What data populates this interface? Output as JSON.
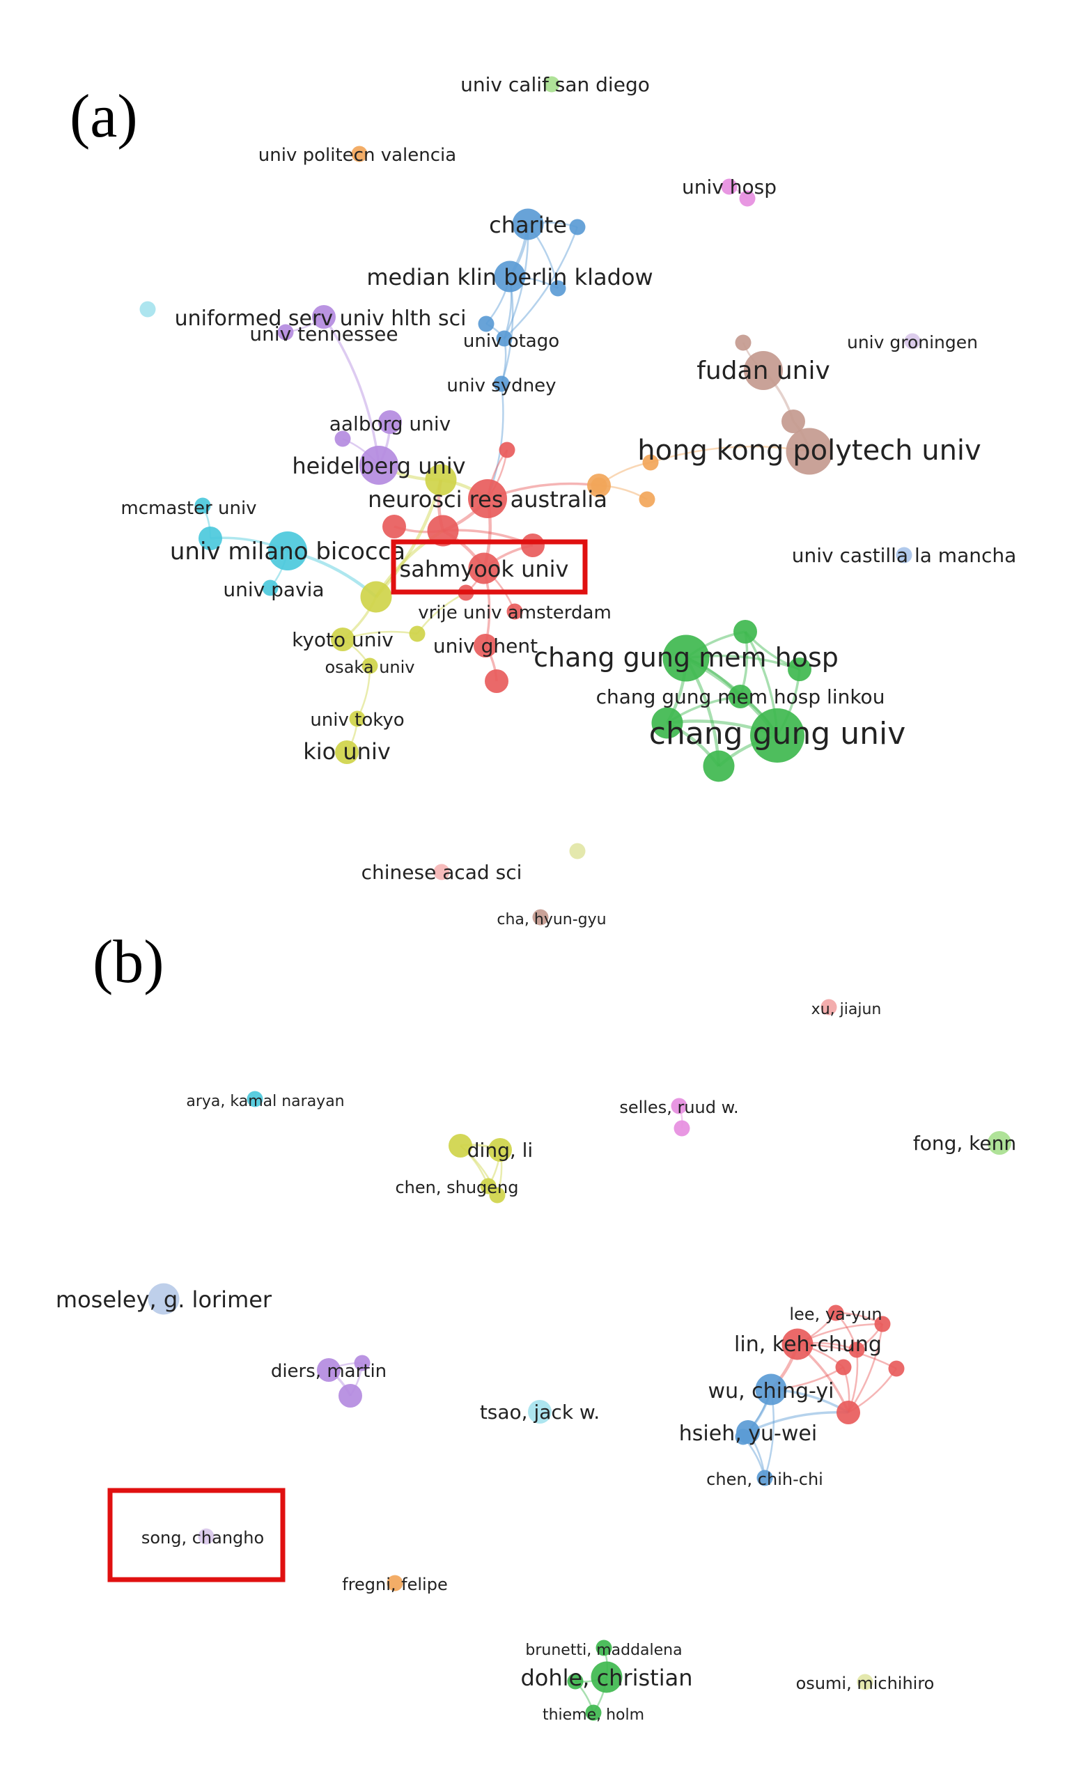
{
  "panels": [
    {
      "label": "(a)",
      "nodes": [
        {
          "id": "a_ucsd",
          "label": "univ calif san diego",
          "color": "#a8e08f",
          "weight": 1
        },
        {
          "id": "a_upv",
          "label": "univ politecn valencia",
          "color": "#f2a65a",
          "weight": 1
        },
        {
          "id": "a_hosp",
          "label": "univ hosp",
          "color": "#e68ee0",
          "weight": 1
        },
        {
          "id": "a_hosp2",
          "label": "",
          "color": "#e68ee0",
          "weight": 1
        },
        {
          "id": "a_charite",
          "label": "charite",
          "color": "#5b9bd5",
          "weight": 3
        },
        {
          "id": "a_b1",
          "label": "",
          "color": "#5b9bd5",
          "weight": 1
        },
        {
          "id": "a_median",
          "label": "median klin berlin kladow",
          "color": "#5b9bd5",
          "weight": 3
        },
        {
          "id": "a_b2",
          "label": "",
          "color": "#5b9bd5",
          "weight": 1
        },
        {
          "id": "a_b3",
          "label": "",
          "color": "#5b9bd5",
          "weight": 1
        },
        {
          "id": "a_otago",
          "label": "univ otago",
          "color": "#5b9bd5",
          "weight": 1
        },
        {
          "id": "a_sydney",
          "label": "univ sydney",
          "color": "#5b9bd5",
          "weight": 1
        },
        {
          "id": "a_lone",
          "label": "",
          "color": "#a6e3ee",
          "weight": 1
        },
        {
          "id": "a_usuhs",
          "label": "uniformed serv univ hlth sci",
          "color": "#b48be0",
          "weight": 2
        },
        {
          "id": "a_tenn",
          "label": "univ tennessee",
          "color": "#b48be0",
          "weight": 1
        },
        {
          "id": "a_aalborg",
          "label": "aalborg univ",
          "color": "#b48be0",
          "weight": 2
        },
        {
          "id": "a_p1",
          "label": "",
          "color": "#b48be0",
          "weight": 1
        },
        {
          "id": "a_heid",
          "label": "heidelberg univ",
          "color": "#b48be0",
          "weight": 4
        },
        {
          "id": "a_groningen",
          "label": "univ groningen",
          "color": "#d9c8ea",
          "weight": 1
        },
        {
          "id": "a_fudan",
          "label": "fudan univ",
          "color": "#c49a8f",
          "weight": 4
        },
        {
          "id": "a_br1",
          "label": "",
          "color": "#c49a8f",
          "weight": 1
        },
        {
          "id": "a_br2",
          "label": "",
          "color": "#c49a8f",
          "weight": 2
        },
        {
          "id": "a_hkpu",
          "label": "hong kong polytech univ",
          "color": "#c49a8f",
          "weight": 5
        },
        {
          "id": "a_o1",
          "label": "",
          "color": "#f2a65a",
          "weight": 2
        },
        {
          "id": "a_o2",
          "label": "",
          "color": "#f2a65a",
          "weight": 1
        },
        {
          "id": "a_o3",
          "label": "",
          "color": "#f2a65a",
          "weight": 1
        },
        {
          "id": "a_o4",
          "label": "",
          "color": "#f2a65a",
          "weight": 1
        },
        {
          "id": "a_mcmaster",
          "label": "mcmaster univ",
          "color": "#4cc9dc",
          "weight": 1
        },
        {
          "id": "a_c1",
          "label": "",
          "color": "#4cc9dc",
          "weight": 2
        },
        {
          "id": "a_milano",
          "label": "univ milano bicocca",
          "color": "#4cc9dc",
          "weight": 4
        },
        {
          "id": "a_pavia",
          "label": "univ pavia",
          "color": "#4cc9dc",
          "weight": 1
        },
        {
          "id": "a_nra",
          "label": "neurosci res australia",
          "color": "#e85c5c",
          "weight": 4
        },
        {
          "id": "a_r1",
          "label": "",
          "color": "#e85c5c",
          "weight": 1
        },
        {
          "id": "a_r2",
          "label": "",
          "color": "#e85c5c",
          "weight": 3
        },
        {
          "id": "a_r3",
          "label": "",
          "color": "#e85c5c",
          "weight": 2
        },
        {
          "id": "a_r4",
          "label": "",
          "color": "#e85c5c",
          "weight": 2
        },
        {
          "id": "a_sahm",
          "label": "sahmyook univ",
          "color": "#e85c5c",
          "weight": 3
        },
        {
          "id": "a_r5",
          "label": "",
          "color": "#e85c5c",
          "weight": 1
        },
        {
          "id": "a_vua",
          "label": "vrije univ amsterdam",
          "color": "#e85c5c",
          "weight": 1
        },
        {
          "id": "a_ghent",
          "label": "univ ghent",
          "color": "#e85c5c",
          "weight": 2
        },
        {
          "id": "a_r6",
          "label": "",
          "color": "#e85c5c",
          "weight": 2
        },
        {
          "id": "a_y1",
          "label": "",
          "color": "#cfd44a",
          "weight": 3
        },
        {
          "id": "a_y2",
          "label": "",
          "color": "#cfd44a",
          "weight": 3
        },
        {
          "id": "a_kyoto",
          "label": "kyoto univ",
          "color": "#cfd44a",
          "weight": 2
        },
        {
          "id": "a_y3",
          "label": "",
          "color": "#cfd44a",
          "weight": 1
        },
        {
          "id": "a_osaka",
          "label": "osaka univ",
          "color": "#cfd44a",
          "weight": 1
        },
        {
          "id": "a_tokyo",
          "label": "univ tokyo",
          "color": "#cfd44a",
          "weight": 1
        },
        {
          "id": "a_kio",
          "label": "kio univ",
          "color": "#cfd44a",
          "weight": 2
        },
        {
          "id": "a_castilla",
          "label": "univ castilla la mancha",
          "color": "#a9c4ea",
          "weight": 1
        },
        {
          "id": "a_cgmh",
          "label": "chang gung mem hosp",
          "color": "#3fb84f",
          "weight": 5
        },
        {
          "id": "a_g1",
          "label": "",
          "color": "#3fb84f",
          "weight": 2
        },
        {
          "id": "a_g2",
          "label": "",
          "color": "#3fb84f",
          "weight": 2
        },
        {
          "id": "a_linkou",
          "label": "chang gung mem hosp linkou",
          "color": "#3fb84f",
          "weight": 2
        },
        {
          "id": "a_g3",
          "label": "",
          "color": "#3fb84f",
          "weight": 3
        },
        {
          "id": "a_cgu",
          "label": "chang gung univ",
          "color": "#3fb84f",
          "weight": 6
        },
        {
          "id": "a_g4",
          "label": "",
          "color": "#3fb84f",
          "weight": 3
        },
        {
          "id": "a_lone2",
          "label": "",
          "color": "#e2e6a6",
          "weight": 1
        },
        {
          "id": "a_cas",
          "label": "chinese acad sci",
          "color": "#f5b5b5",
          "weight": 1
        },
        {
          "id": "a_cha",
          "label": "cha, hyun-gyu",
          "color": "#c49a8f",
          "weight": 1
        }
      ],
      "links": [
        [
          "a_charite",
          "a_median"
        ],
        [
          "a_charite",
          "a_b1"
        ],
        [
          "a_charite",
          "a_b2"
        ],
        [
          "a_median",
          "a_b2"
        ],
        [
          "a_median",
          "a_b3"
        ],
        [
          "a_median",
          "a_otago"
        ],
        [
          "a_charite",
          "a_otago"
        ],
        [
          "a_b1",
          "a_otago"
        ],
        [
          "a_b3",
          "a_otago"
        ],
        [
          "a_median",
          "a_sydney"
        ],
        [
          "a_otago",
          "a_sydney"
        ],
        [
          "a_sydney",
          "a_nra"
        ],
        [
          "a_hosp",
          "a_hosp2"
        ],
        [
          "a_usuhs",
          "a_tenn"
        ],
        [
          "a_usuhs",
          "a_heid"
        ],
        [
          "a_aalborg",
          "a_heid"
        ],
        [
          "a_p1",
          "a_heid"
        ],
        [
          "a_fudan",
          "a_br1"
        ],
        [
          "a_fudan",
          "a_br2"
        ],
        [
          "a_br2",
          "a_hkpu"
        ],
        [
          "a_mcmaster",
          "a_c1"
        ],
        [
          "a_c1",
          "a_milano"
        ],
        [
          "a_milano",
          "a_pavia"
        ],
        [
          "a_milano",
          "a_y2"
        ],
        [
          "a_nra",
          "a_r1"
        ],
        [
          "a_nra",
          "a_r2"
        ],
        [
          "a_nra",
          "a_sahm"
        ],
        [
          "a_r2",
          "a_sahm"
        ],
        [
          "a_r2",
          "a_r3"
        ],
        [
          "a_r2",
          "a_r4"
        ],
        [
          "a_sahm",
          "a_r4"
        ],
        [
          "a_sahm",
          "a_r5"
        ],
        [
          "a_sahm",
          "a_vua"
        ],
        [
          "a_sahm",
          "a_ghent"
        ],
        [
          "a_ghent",
          "a_r6"
        ],
        [
          "a_r2",
          "a_y1"
        ],
        [
          "a_y1",
          "a_nra"
        ],
        [
          "a_y1",
          "a_heid"
        ],
        [
          "a_y1",
          "a_y2"
        ],
        [
          "a_y2",
          "a_kyoto"
        ],
        [
          "a_y2",
          "a_r2"
        ],
        [
          "a_kyoto",
          "a_y3"
        ],
        [
          "a_kyoto",
          "a_osaka"
        ],
        [
          "a_osaka",
          "a_tokyo"
        ],
        [
          "a_tokyo",
          "a_kio"
        ],
        [
          "a_y3",
          "a_r5"
        ],
        [
          "a_nra",
          "a_o1"
        ],
        [
          "a_o1",
          "a_o2"
        ],
        [
          "a_o1",
          "a_o3"
        ],
        [
          "a_o1",
          "a_o4"
        ],
        [
          "a_o2",
          "a_hkpu"
        ],
        [
          "a_r1",
          "a_nra"
        ],
        [
          "a_cgmh",
          "a_g1"
        ],
        [
          "a_cgmh",
          "a_g2"
        ],
        [
          "a_cgmh",
          "a_linkou"
        ],
        [
          "a_cgmh",
          "a_g3"
        ],
        [
          "a_cgmh",
          "a_cgu"
        ],
        [
          "a_cgmh",
          "a_g4"
        ],
        [
          "a_g1",
          "a_cgu"
        ],
        [
          "a_g1",
          "a_linkou"
        ],
        [
          "a_g2",
          "a_cgu"
        ],
        [
          "a_linkou",
          "a_cgu"
        ],
        [
          "a_g3",
          "a_cgu"
        ],
        [
          "a_g3",
          "a_g4"
        ],
        [
          "a_g4",
          "a_cgu"
        ],
        [
          "a_g3",
          "a_linkou"
        ],
        [
          "a_g2",
          "a_g1"
        ],
        [
          "a_cha",
          "a_cha"
        ]
      ],
      "highlight": "sahmyook univ"
    },
    {
      "label": "(b)",
      "nodes": [
        {
          "id": "b_xu",
          "label": "xu, jiajun",
          "color": "#f2a6a6",
          "weight": 1
        },
        {
          "id": "b_arya",
          "label": "arya, kamal narayan",
          "color": "#4cc9dc",
          "weight": 1
        },
        {
          "id": "b_selles",
          "label": "selles, ruud w.",
          "color": "#e68ee0",
          "weight": 1
        },
        {
          "id": "b_sel2",
          "label": "",
          "color": "#e68ee0",
          "weight": 1
        },
        {
          "id": "b_fong",
          "label": "fong, kenn",
          "color": "#a8e08f",
          "weight": 2
        },
        {
          "id": "b_y1",
          "label": "",
          "color": "#cfd44a",
          "weight": 2
        },
        {
          "id": "b_ding",
          "label": "ding, li",
          "color": "#cfd44a",
          "weight": 2
        },
        {
          "id": "b_chen",
          "label": "chen, shugeng",
          "color": "#cfd44a",
          "weight": 1
        },
        {
          "id": "b_y2",
          "label": "",
          "color": "#cfd44a",
          "weight": 1
        },
        {
          "id": "b_moseley",
          "label": "moseley, g. lorimer",
          "color": "#b9cbe8",
          "weight": 3
        },
        {
          "id": "b_diers",
          "label": "diers, martin",
          "color": "#b48be0",
          "weight": 2
        },
        {
          "id": "b_p1",
          "label": "",
          "color": "#b48be0",
          "weight": 1
        },
        {
          "id": "b_p2",
          "label": "",
          "color": "#b48be0",
          "weight": 2
        },
        {
          "id": "b_tsao",
          "label": "tsao, jack w.",
          "color": "#a6e3ee",
          "weight": 2
        },
        {
          "id": "b_lee",
          "label": "lee, ya-yun",
          "color": "#e85c5c",
          "weight": 1
        },
        {
          "id": "b_lin",
          "label": "lin, keh-chung",
          "color": "#e85c5c",
          "weight": 3
        },
        {
          "id": "b_r1",
          "label": "",
          "color": "#e85c5c",
          "weight": 1
        },
        {
          "id": "b_r2",
          "label": "",
          "color": "#e85c5c",
          "weight": 1
        },
        {
          "id": "b_r3",
          "label": "",
          "color": "#e85c5c",
          "weight": 1
        },
        {
          "id": "b_r4",
          "label": "",
          "color": "#e85c5c",
          "weight": 2
        },
        {
          "id": "b_r5",
          "label": "",
          "color": "#e85c5c",
          "weight": 1
        },
        {
          "id": "b_wu",
          "label": "wu, ching-yi",
          "color": "#5b9bd5",
          "weight": 3
        },
        {
          "id": "b_hsieh",
          "label": "hsieh, yu-wei",
          "color": "#5b9bd5",
          "weight": 2
        },
        {
          "id": "b_chenc",
          "label": "chen, chih-chi",
          "color": "#5b9bd5",
          "weight": 1
        },
        {
          "id": "b_b1",
          "label": "",
          "color": "#5b9bd5",
          "weight": 1
        },
        {
          "id": "b_song",
          "label": "song, changho",
          "color": "#d9c8ea",
          "weight": 1
        },
        {
          "id": "b_fregni",
          "label": "fregni, felipe",
          "color": "#f2a65a",
          "weight": 1
        },
        {
          "id": "b_brunetti",
          "label": "brunetti, maddalena",
          "color": "#3fb84f",
          "weight": 1
        },
        {
          "id": "b_dohle",
          "label": "dohle, christian",
          "color": "#3fb84f",
          "weight": 3
        },
        {
          "id": "b_g1",
          "label": "",
          "color": "#3fb84f",
          "weight": 1
        },
        {
          "id": "b_thieme",
          "label": "thieme, holm",
          "color": "#3fb84f",
          "weight": 1
        },
        {
          "id": "b_osumi",
          "label": "osumi, michihiro",
          "color": "#e2e6a6",
          "weight": 1
        }
      ],
      "links": [
        [
          "b_selles",
          "b_sel2"
        ],
        [
          "b_y1",
          "b_ding"
        ],
        [
          "b_y1",
          "b_chen"
        ],
        [
          "b_y1",
          "b_y2"
        ],
        [
          "b_ding",
          "b_chen"
        ],
        [
          "b_ding",
          "b_y2"
        ],
        [
          "b_chen",
          "b_y2"
        ],
        [
          "b_diers",
          "b_p1"
        ],
        [
          "b_diers",
          "b_p2"
        ],
        [
          "b_p1",
          "b_p2"
        ],
        [
          "b_lee",
          "b_lin"
        ],
        [
          "b_lee",
          "b_r1"
        ],
        [
          "b_lee",
          "b_r2"
        ],
        [
          "b_lin",
          "b_r1"
        ],
        [
          "b_lin",
          "b_r2"
        ],
        [
          "b_lin",
          "b_r3"
        ],
        [
          "b_lin",
          "b_r4"
        ],
        [
          "b_lin",
          "b_wu"
        ],
        [
          "b_r1",
          "b_r2"
        ],
        [
          "b_r2",
          "b_r4"
        ],
        [
          "b_r3",
          "b_r4"
        ],
        [
          "b_r1",
          "b_r4"
        ],
        [
          "b_r5",
          "b_r4"
        ],
        [
          "b_lin",
          "b_r5"
        ],
        [
          "b_wu",
          "b_r4"
        ],
        [
          "b_wu",
          "b_hsieh"
        ],
        [
          "b_wu",
          "b_chenc"
        ],
        [
          "b_wu",
          "b_b1"
        ],
        [
          "b_hsieh",
          "b_chenc"
        ],
        [
          "b_hsieh",
          "b_r4"
        ],
        [
          "b_b1",
          "b_chenc"
        ],
        [
          "b_r3",
          "b_wu"
        ],
        [
          "b_brunetti",
          "b_dohle"
        ],
        [
          "b_dohle",
          "b_g1"
        ],
        [
          "b_dohle",
          "b_thieme"
        ],
        [
          "b_g1",
          "b_thieme"
        ],
        [
          "b_fregni",
          "b_fregni"
        ]
      ],
      "highlight": "song, changho"
    }
  ],
  "colors": {
    "highlight_box": "#e01010",
    "label_text": "#222222"
  }
}
